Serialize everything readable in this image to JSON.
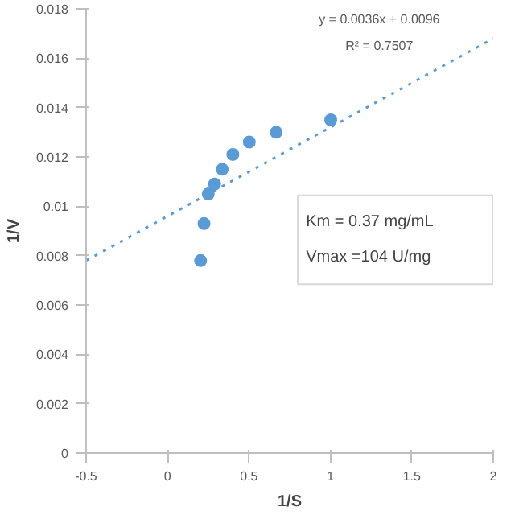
{
  "chart_data": {
    "type": "scatter",
    "xlabel": "1/S",
    "ylabel": "1/V",
    "xlim": [
      -0.5,
      2.0
    ],
    "ylim": [
      0,
      0.018
    ],
    "xticks": [
      -0.5,
      0,
      0.5,
      1,
      1.5,
      2
    ],
    "yticks": [
      0,
      0.002,
      0.004,
      0.006,
      0.008,
      0.01,
      0.012,
      0.014,
      0.016,
      0.018
    ],
    "grid": false,
    "series": [
      {
        "marker": "circle",
        "color": "#5b9bd5",
        "x": [
          0.203,
          0.224,
          0.25,
          0.289,
          0.336,
          0.401,
          0.502,
          0.667,
          1.002
        ],
        "values": [
          0.0078,
          0.0093,
          0.0105,
          0.0109,
          0.0115,
          0.0121,
          0.0126,
          0.013,
          0.0135
        ]
      },
      {
        "type": "line",
        "marker": "none",
        "line_style": "dotted",
        "color": "#5b9bd5",
        "x": [
          -0.5,
          2.0
        ],
        "values": [
          0.0078,
          0.0168
        ]
      }
    ],
    "annotations": [
      "y = 0.0036x + 0.0096",
      "R² = 0.7507",
      "Km = 0.37 mg/mL",
      "Vmax =104 U/mg"
    ]
  }
}
